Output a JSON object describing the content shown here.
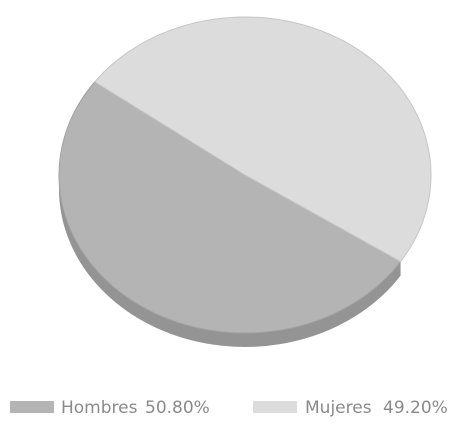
{
  "chart_data": {
    "type": "pie",
    "title": "",
    "style": "3d",
    "legend_position": "bottom",
    "slices": [
      {
        "label": "Hombres",
        "value": 50.8,
        "value_label": "50.80%",
        "color": "#b4b4b4"
      },
      {
        "label": "Mujeres",
        "value": 49.2,
        "value_label": "49.20%",
        "color": "#dcdcdc"
      }
    ]
  }
}
